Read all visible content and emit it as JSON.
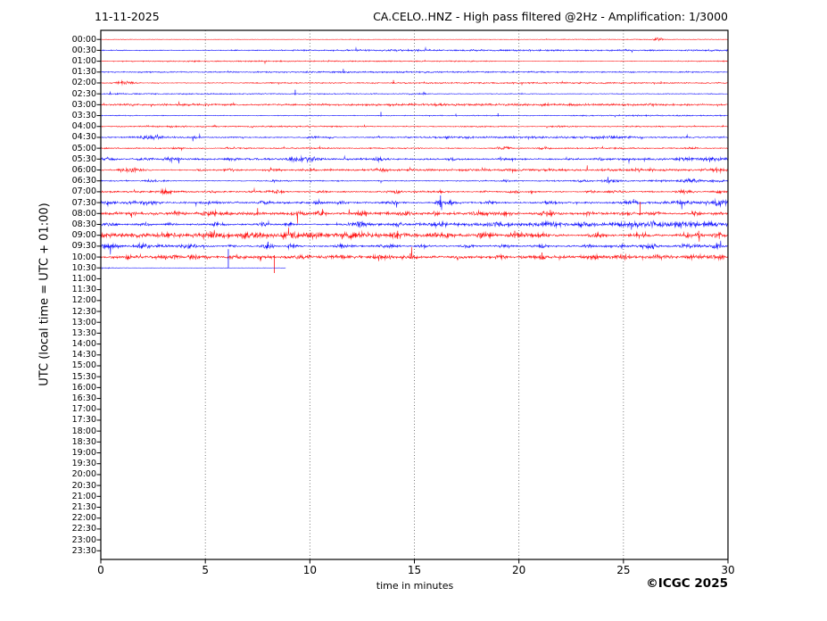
{
  "header": {
    "date": "11-11-2025",
    "title": "CA.CELO..HNZ - High pass filtered @2Hz - Amplification: 1/3000"
  },
  "footer": {
    "copyright": "©ICGC 2025"
  },
  "chart_data": {
    "type": "line",
    "variant": "helicorder-seismogram",
    "station": "CA.CELO..HNZ",
    "filter": "High pass filtered @2Hz",
    "amplification": "1/3000",
    "date": "11-11-2025",
    "xlabel": "time in minutes",
    "ylabel": "UTC (local time = UTC + 01:00)",
    "x_range": [
      0,
      30
    ],
    "x_ticks": [
      0,
      5,
      10,
      15,
      20,
      25,
      30
    ],
    "x_gridlines": [
      5,
      10,
      15,
      20,
      25
    ],
    "grid_style": "dotted-vertical",
    "y_tick_labels": [
      "00:00",
      "00:30",
      "01:00",
      "01:30",
      "02:00",
      "02:30",
      "03:00",
      "03:30",
      "04:00",
      "04:30",
      "05:00",
      "05:30",
      "06:00",
      "06:30",
      "07:00",
      "07:30",
      "08:00",
      "08:30",
      "09:00",
      "09:30",
      "10:00",
      "10:30",
      "11:00",
      "11:30",
      "12:00",
      "12:30",
      "13:00",
      "13:30",
      "14:00",
      "14:30",
      "15:00",
      "15:30",
      "16:00",
      "16:30",
      "17:00",
      "17:30",
      "18:00",
      "18:30",
      "19:00",
      "19:30",
      "20:00",
      "20:30",
      "21:00",
      "21:30",
      "22:00",
      "22:30",
      "23:00",
      "23:30"
    ],
    "trace_colors": {
      "red": "#ff0000",
      "blue": "#0000ff"
    },
    "frame_color": "#000000",
    "grid_color": "#555555",
    "no_data_after_label": "10:30",
    "traces": [
      {
        "label": "00:00",
        "color": "red",
        "base": 0.4,
        "coverage": 1,
        "bursts": [
          [
            26.7,
            0.15,
            2.2
          ]
        ],
        "spikes": []
      },
      {
        "label": "00:30",
        "color": "blue",
        "base": 0.85,
        "coverage": 1,
        "bursts": [
          [
            25.1,
            0.1,
            0.7
          ]
        ],
        "spikes": []
      },
      {
        "label": "01:00",
        "color": "red",
        "base": 0.55,
        "coverage": 1,
        "bursts": [],
        "spikes": []
      },
      {
        "label": "01:30",
        "color": "blue",
        "base": 0.75,
        "coverage": 1,
        "bursts": [],
        "spikes": [
          [
            11.6,
            3.5,
            1.2
          ]
        ]
      },
      {
        "label": "02:00",
        "color": "red",
        "base": 0.75,
        "coverage": 1,
        "bursts": [
          [
            1.1,
            0.3,
            2.6
          ]
        ],
        "spikes": [
          [
            14.0,
            3.2,
            1.0
          ],
          [
            26.8,
            1.8,
            0.8
          ]
        ]
      },
      {
        "label": "02:30",
        "color": "blue",
        "base": 0.8,
        "coverage": 1,
        "bursts": [
          [
            15.4,
            0.12,
            1.2
          ]
        ],
        "spikes": [
          [
            9.3,
            4.5,
            1.5
          ]
        ]
      },
      {
        "label": "03:00",
        "color": "red",
        "base": 1.05,
        "coverage": 1,
        "bursts": [],
        "spikes": []
      },
      {
        "label": "03:30",
        "color": "blue",
        "base": 0.8,
        "coverage": 1,
        "bursts": [],
        "spikes": [
          [
            13.4,
            4.0,
            1.2
          ],
          [
            19.0,
            2.6,
            1.0
          ]
        ]
      },
      {
        "label": "04:00",
        "color": "red",
        "base": 1.05,
        "coverage": 1,
        "bursts": [
          [
            2.2,
            0.15,
            0.9
          ],
          [
            7.2,
            0.12,
            1.1
          ],
          [
            21.8,
            0.15,
            1.0
          ],
          [
            25.6,
            0.12,
            1.1
          ]
        ],
        "spikes": []
      },
      {
        "label": "04:30",
        "color": "blue",
        "base": 1.0,
        "coverage": 1,
        "bursts": [
          [
            2.3,
            0.5,
            2.0
          ],
          [
            4.5,
            0.15,
            1.4
          ],
          [
            10.2,
            0.25,
            1.5
          ],
          [
            10.9,
            0.15,
            1.3
          ],
          [
            16.6,
            0.1,
            0.8
          ],
          [
            24.3,
            0.3,
            1.7
          ],
          [
            25.1,
            0.15,
            1.1
          ]
        ],
        "spikes": []
      },
      {
        "label": "05:00",
        "color": "red",
        "base": 1.0,
        "coverage": 1,
        "bursts": [
          [
            3.7,
            0.15,
            1.7
          ],
          [
            6.0,
            0.15,
            1.4
          ],
          [
            19.2,
            0.25,
            2.4
          ],
          [
            21.2,
            0.2,
            1.4
          ],
          [
            28.3,
            0.15,
            1.1
          ]
        ],
        "spikes": []
      },
      {
        "label": "05:30",
        "color": "blue",
        "base": 1.1,
        "coverage": 1,
        "bursts": [
          [
            0.4,
            0.2,
            1.9
          ],
          [
            2.0,
            0.2,
            1.4
          ],
          [
            3.4,
            0.3,
            1.9
          ],
          [
            6.3,
            0.2,
            1.7
          ],
          [
            9.5,
            0.35,
            2.6
          ],
          [
            10.2,
            0.2,
            1.9
          ],
          [
            13.3,
            0.2,
            1.9
          ],
          [
            16.8,
            0.2,
            1.4
          ],
          [
            19.2,
            0.15,
            1.2
          ],
          [
            23.8,
            0.2,
            1.4
          ],
          [
            28.0,
            0.3,
            1.7
          ],
          [
            29.3,
            0.3,
            1.9
          ]
        ],
        "spikes": []
      },
      {
        "label": "06:00",
        "color": "red",
        "base": 1.1,
        "coverage": 1,
        "bursts": [
          [
            1.4,
            0.3,
            2.4
          ],
          [
            2.1,
            0.15,
            1.4
          ],
          [
            4.8,
            0.2,
            1.4
          ],
          [
            6.1,
            0.25,
            2.1
          ],
          [
            8.2,
            0.25,
            1.9
          ],
          [
            9.9,
            0.2,
            1.4
          ],
          [
            13.5,
            0.25,
            1.9
          ],
          [
            19.7,
            0.2,
            1.4
          ],
          [
            21.4,
            0.15,
            1.2
          ],
          [
            25.6,
            0.2,
            1.4
          ],
          [
            29.5,
            0.2,
            1.9
          ]
        ],
        "spikes": []
      },
      {
        "label": "06:30",
        "color": "blue",
        "base": 1.0,
        "coverage": 1,
        "bursts": [
          [
            2.4,
            0.25,
            1.7
          ],
          [
            3.1,
            0.15,
            1.2
          ],
          [
            8.3,
            0.15,
            1.0
          ],
          [
            19.4,
            0.2,
            1.4
          ],
          [
            23.0,
            0.15,
            1.0
          ],
          [
            24.5,
            0.3,
            1.7
          ],
          [
            26.8,
            0.2,
            1.2
          ],
          [
            28.2,
            0.35,
            1.9
          ],
          [
            29.4,
            0.2,
            1.4
          ]
        ],
        "spikes": []
      },
      {
        "label": "07:00",
        "color": "red",
        "base": 1.25,
        "coverage": 1,
        "bursts": [
          [
            3.1,
            0.3,
            1.9
          ],
          [
            5.4,
            0.2,
            1.4
          ],
          [
            8.4,
            0.25,
            1.9
          ],
          [
            10.5,
            0.2,
            1.4
          ],
          [
            14.1,
            0.25,
            1.9
          ],
          [
            16.3,
            0.2,
            1.4
          ],
          [
            18.4,
            0.15,
            1.2
          ],
          [
            19.8,
            0.2,
            1.9
          ],
          [
            20.6,
            0.15,
            1.4
          ],
          [
            23.4,
            0.2,
            1.4
          ],
          [
            24.6,
            0.25,
            2.1
          ],
          [
            27.9,
            0.3,
            2.4
          ],
          [
            29.6,
            0.2,
            1.9
          ]
        ],
        "spikes": []
      },
      {
        "label": "07:30",
        "color": "blue",
        "base": 1.45,
        "coverage": 1,
        "bursts": [
          [
            0.3,
            0.25,
            2.8
          ],
          [
            1.8,
            0.3,
            1.9
          ],
          [
            2.5,
            0.2,
            1.7
          ],
          [
            5.2,
            0.25,
            1.9
          ],
          [
            7.8,
            0.2,
            1.4
          ],
          [
            10.4,
            0.15,
            2.8
          ],
          [
            11.5,
            0.2,
            1.7
          ],
          [
            13.9,
            0.3,
            2.1
          ],
          [
            16.2,
            0.18,
            3.3
          ],
          [
            16.8,
            0.15,
            2.4
          ],
          [
            18.6,
            0.2,
            1.9
          ],
          [
            21.5,
            0.2,
            1.7
          ],
          [
            25.4,
            0.3,
            1.9
          ],
          [
            27.8,
            0.2,
            1.7
          ],
          [
            29.7,
            0.25,
            4.5
          ]
        ],
        "spikes": [
          [
            16.25,
            8,
            5
          ]
        ]
      },
      {
        "label": "08:00",
        "color": "red",
        "base": 1.7,
        "coverage": 1,
        "bursts": [
          [
            0.7,
            0.2,
            1.9
          ],
          [
            1.6,
            0.2,
            2.1
          ],
          [
            3.5,
            0.3,
            1.9
          ],
          [
            5.2,
            0.3,
            2.4
          ],
          [
            6.0,
            0.2,
            1.9
          ],
          [
            7.4,
            0.2,
            2.4
          ],
          [
            9.4,
            0.3,
            2.1
          ],
          [
            10.5,
            0.2,
            2.6
          ],
          [
            12.5,
            0.25,
            1.9
          ],
          [
            14.5,
            0.2,
            2.1
          ],
          [
            16.0,
            0.2,
            1.9
          ],
          [
            18.2,
            0.3,
            2.4
          ],
          [
            19.4,
            0.2,
            1.9
          ],
          [
            21.3,
            0.25,
            2.6
          ],
          [
            23.3,
            0.2,
            1.9
          ],
          [
            25.3,
            0.2,
            2.1
          ],
          [
            26.5,
            0.2,
            1.9
          ],
          [
            28.4,
            0.25,
            2.4
          ],
          [
            29.5,
            0.2,
            2.1
          ]
        ],
        "spikes": [
          [
            7.5,
            6,
            2
          ],
          [
            10.6,
            5,
            1.5
          ],
          [
            21.5,
            4,
            2
          ],
          [
            25.8,
            13,
            2
          ]
        ]
      },
      {
        "label": "08:30",
        "color": "blue",
        "base": 1.55,
        "coverage": 1,
        "bursts": [
          [
            0.5,
            0.3,
            2.1
          ],
          [
            2.1,
            0.3,
            1.9
          ],
          [
            3.3,
            0.2,
            1.7
          ],
          [
            5.6,
            0.25,
            1.9
          ],
          [
            7.8,
            0.3,
            2.1
          ],
          [
            9.0,
            0.2,
            1.7
          ],
          [
            12.4,
            0.3,
            2.4
          ],
          [
            14.2,
            0.2,
            1.7
          ],
          [
            16.1,
            0.25,
            1.9
          ],
          [
            18.8,
            0.2,
            1.7
          ],
          [
            21.4,
            0.3,
            2.1
          ],
          [
            23.1,
            0.2,
            1.7
          ],
          [
            25.5,
            0.8,
            1.9
          ],
          [
            27.5,
            0.8,
            2.1
          ],
          [
            29.2,
            0.4,
            1.9
          ]
        ],
        "spikes": []
      },
      {
        "label": "09:00",
        "color": "red",
        "base": 2.25,
        "coverage": 1,
        "bursts": [
          [
            0.3,
            0.3,
            2.4
          ],
          [
            1.5,
            0.3,
            2.4
          ],
          [
            3.2,
            0.3,
            2.6
          ],
          [
            5.3,
            0.3,
            2.4
          ],
          [
            7.2,
            0.3,
            2.4
          ],
          [
            9.1,
            0.25,
            2.6
          ],
          [
            10.2,
            0.2,
            2.8
          ],
          [
            12.2,
            0.3,
            2.4
          ],
          [
            14.2,
            0.25,
            3.3
          ],
          [
            16.3,
            0.3,
            2.4
          ],
          [
            18.3,
            0.3,
            2.6
          ],
          [
            19.9,
            0.25,
            3.3
          ],
          [
            21.2,
            0.3,
            2.4
          ],
          [
            23.8,
            0.25,
            2.8
          ],
          [
            25.9,
            0.3,
            2.6
          ],
          [
            28.3,
            0.3,
            2.8
          ],
          [
            29.5,
            0.25,
            2.6
          ]
        ],
        "spikes": [
          [
            14.2,
            5,
            4
          ],
          [
            19.8,
            5,
            3
          ],
          [
            28.6,
            5,
            3
          ]
        ]
      },
      {
        "label": "09:30",
        "color": "blue",
        "base": 1.75,
        "coverage": 1,
        "bursts": [
          [
            0.4,
            0.3,
            2.8
          ],
          [
            2.1,
            0.3,
            2.1
          ],
          [
            4.2,
            0.25,
            1.9
          ],
          [
            6.2,
            0.2,
            1.7
          ],
          [
            8.0,
            0.22,
            3.3
          ],
          [
            9.1,
            0.2,
            2.4
          ],
          [
            11.5,
            0.25,
            2.1
          ],
          [
            13.8,
            0.25,
            2.4
          ],
          [
            15.4,
            0.2,
            1.9
          ],
          [
            17.6,
            0.25,
            2.1
          ],
          [
            19.3,
            0.2,
            1.9
          ],
          [
            21.1,
            0.25,
            2.4
          ],
          [
            23.3,
            0.2,
            1.9
          ],
          [
            24.9,
            0.2,
            1.9
          ],
          [
            26.2,
            0.3,
            2.6
          ],
          [
            28.0,
            0.2,
            1.9
          ],
          [
            29.4,
            0.25,
            2.6
          ]
        ],
        "spikes": [
          [
            8.0,
            5,
            2
          ]
        ]
      },
      {
        "label": "10:00",
        "color": "red",
        "base": 1.35,
        "coverage": 1,
        "bursts": [
          [
            1.3,
            0.25,
            1.7
          ],
          [
            3.3,
            0.3,
            1.9
          ],
          [
            4.4,
            0.2,
            1.7
          ],
          [
            6.4,
            0.25,
            1.9
          ],
          [
            9.5,
            0.3,
            1.9
          ],
          [
            11.5,
            0.25,
            1.7
          ],
          [
            13.5,
            0.3,
            1.9
          ],
          [
            14.8,
            0.2,
            2.1
          ],
          [
            17.3,
            0.25,
            1.7
          ],
          [
            19.2,
            0.2,
            1.7
          ],
          [
            21.0,
            0.2,
            1.9
          ],
          [
            23.5,
            0.25,
            1.9
          ],
          [
            24.9,
            0.3,
            2.4
          ],
          [
            26.8,
            0.3,
            2.1
          ],
          [
            28.5,
            0.4,
            2.4
          ],
          [
            29.6,
            0.3,
            2.4
          ]
        ],
        "spikes": [
          [
            8.3,
            2,
            18
          ],
          [
            14.8,
            4,
            2
          ],
          [
            21.1,
            5,
            3
          ]
        ]
      },
      {
        "label": "10:30",
        "color": "blue",
        "base": 0.3,
        "coverage": 0.295,
        "bursts": [
          [
            0.4,
            0.4,
            0.5
          ]
        ],
        "spikes": [
          [
            6.1,
            21,
            0.5
          ]
        ]
      }
    ]
  }
}
